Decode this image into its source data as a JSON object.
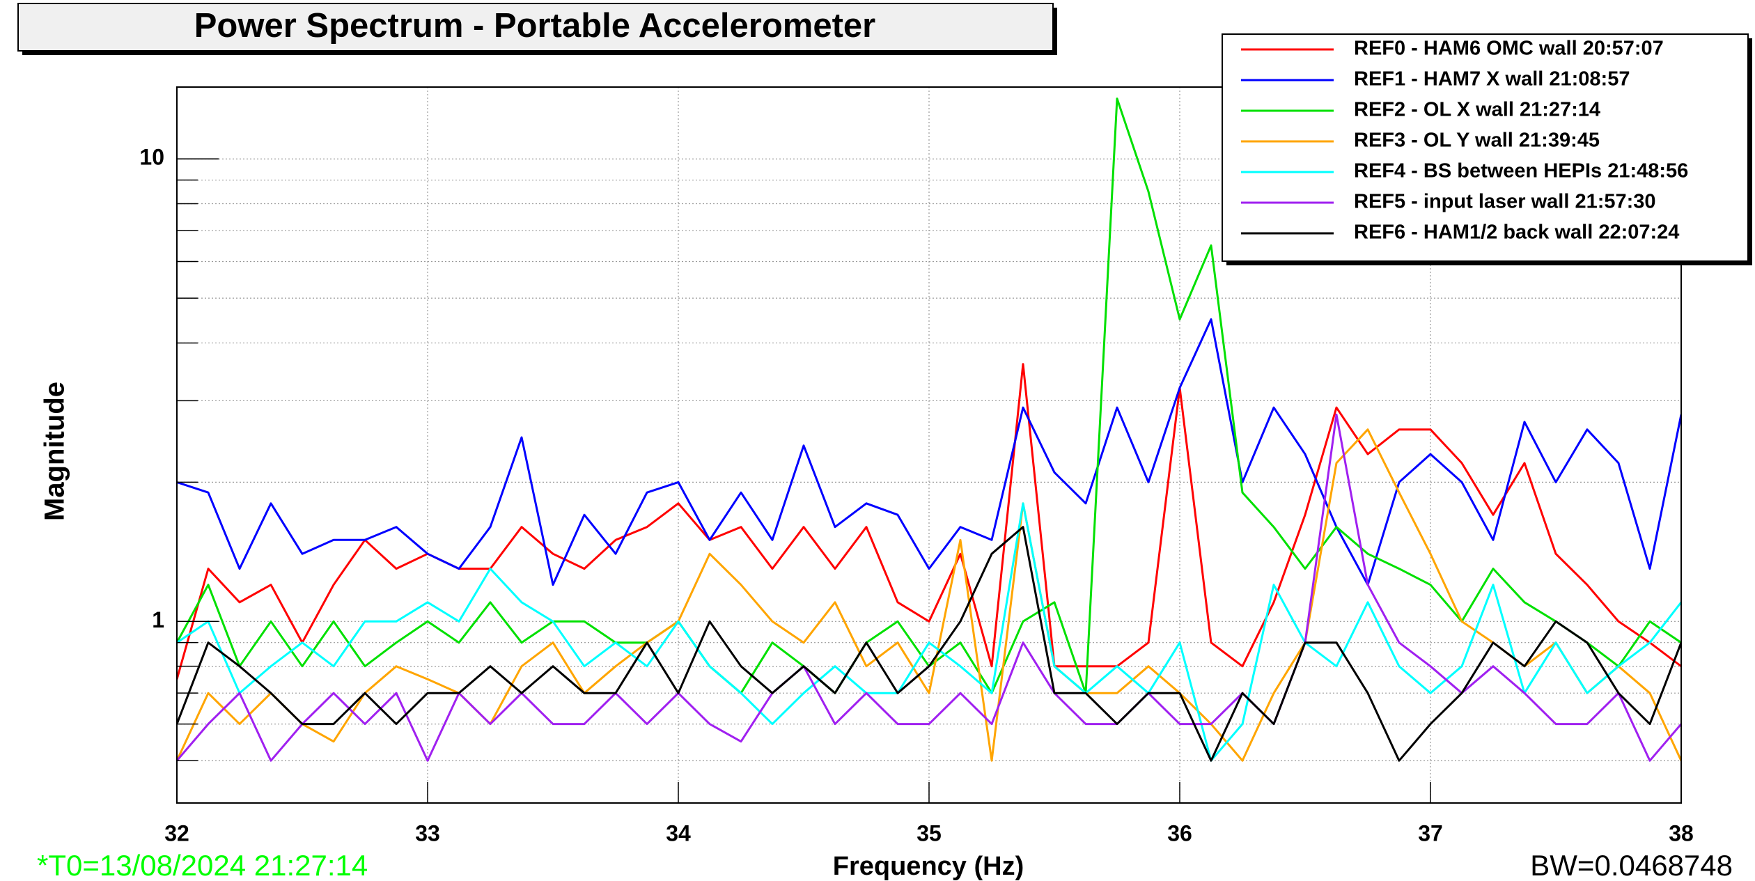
{
  "chart_data": {
    "type": "line",
    "title": "Power Spectrum - Portable Accelerometer",
    "x_label": "Frequency (Hz)",
    "y_label": "Magnitude",
    "t0_label": "*T0=13/08/2024 21:27:14",
    "t0_color": "#00ff00",
    "bw_label": "BW=0.0468748",
    "log_y": true,
    "grid": true,
    "legend": "top-right",
    "xlim": [
      32,
      38
    ],
    "xticks": [
      32,
      33,
      34,
      35,
      36,
      37,
      38
    ],
    "ylim": [
      0.405,
      14.3
    ],
    "yticks": [
      1,
      10
    ],
    "yminor": [
      0.5,
      0.6,
      0.7,
      0.8,
      0.9,
      2,
      3,
      4,
      5,
      6,
      7,
      8,
      9
    ],
    "x": [
      32,
      32.125,
      32.25,
      32.375,
      32.5,
      32.625,
      32.75,
      32.875,
      33,
      33.125,
      33.25,
      33.375,
      33.5,
      33.625,
      33.75,
      33.875,
      34,
      34.125,
      34.25,
      34.375,
      34.5,
      34.625,
      34.75,
      34.875,
      35,
      35.125,
      35.25,
      35.375,
      35.5,
      35.625,
      35.75,
      35.875,
      36,
      36.125,
      36.25,
      36.375,
      36.5,
      36.625,
      36.75,
      36.875,
      37,
      37.125,
      37.25,
      37.375,
      37.5,
      37.625,
      37.75,
      37.875,
      38
    ],
    "series": [
      {
        "name": "REF0 - HAM6 OMC wall 20:57:07",
        "color": "#ff0000",
        "values": [
          0.75,
          1.3,
          1.1,
          1.2,
          0.9,
          1.2,
          1.5,
          1.3,
          1.4,
          1.3,
          1.3,
          1.6,
          1.4,
          1.3,
          1.5,
          1.6,
          1.8,
          1.5,
          1.6,
          1.3,
          1.6,
          1.3,
          1.6,
          1.1,
          1.0,
          1.4,
          0.8,
          3.6,
          0.8,
          0.8,
          0.8,
          0.9,
          3.2,
          0.9,
          0.8,
          1.1,
          1.7,
          2.9,
          2.3,
          2.6,
          2.6,
          2.2,
          1.7,
          2.2,
          1.4,
          1.2,
          1.0,
          0.9,
          0.8
        ]
      },
      {
        "name": "REF1 - HAM7 X wall 21:08:57",
        "color": "#0000ff",
        "values": [
          2.0,
          1.9,
          1.3,
          1.8,
          1.4,
          1.5,
          1.5,
          1.6,
          1.4,
          1.3,
          1.6,
          2.5,
          1.2,
          1.7,
          1.4,
          1.9,
          2.0,
          1.5,
          1.9,
          1.5,
          2.4,
          1.6,
          1.8,
          1.7,
          1.3,
          1.6,
          1.5,
          2.9,
          2.1,
          1.8,
          2.9,
          2.0,
          3.2,
          4.5,
          2.0,
          2.9,
          2.3,
          1.6,
          1.2,
          2.0,
          2.3,
          2.0,
          1.5,
          2.7,
          2.0,
          2.6,
          2.2,
          1.3,
          2.8
        ]
      },
      {
        "name": "REF2 - OL X wall 21:27:14",
        "color": "#00e000",
        "values": [
          0.9,
          1.2,
          0.8,
          1.0,
          0.8,
          1.0,
          0.8,
          0.9,
          1.0,
          0.9,
          1.1,
          0.9,
          1.0,
          1.0,
          0.9,
          0.9,
          1.0,
          0.8,
          0.7,
          0.9,
          0.8,
          0.7,
          0.9,
          1.0,
          0.8,
          0.9,
          0.7,
          1.0,
          1.1,
          0.7,
          13.5,
          8.5,
          4.5,
          6.5,
          1.9,
          1.6,
          1.3,
          1.6,
          1.4,
          1.3,
          1.2,
          1.0,
          1.3,
          1.1,
          1.0,
          0.9,
          0.8,
          1.0,
          0.9
        ]
      },
      {
        "name": "REF3 - OL Y wall 21:39:45",
        "color": "#ffa500",
        "values": [
          0.5,
          0.7,
          0.6,
          0.7,
          0.6,
          0.55,
          0.7,
          0.8,
          0.75,
          0.7,
          0.6,
          0.8,
          0.9,
          0.7,
          0.8,
          0.9,
          1.0,
          1.4,
          1.2,
          1.0,
          0.9,
          1.1,
          0.8,
          0.9,
          0.7,
          1.5,
          0.5,
          1.8,
          0.8,
          0.7,
          0.7,
          0.8,
          0.7,
          0.6,
          0.5,
          0.7,
          0.9,
          2.2,
          2.6,
          1.9,
          1.4,
          1.0,
          0.9,
          0.8,
          0.9,
          0.7,
          0.8,
          0.7,
          0.5
        ]
      },
      {
        "name": "REF4 - BS between HEPIs 21:48:56",
        "color": "#00ffff",
        "values": [
          0.9,
          1.0,
          0.7,
          0.8,
          0.9,
          0.8,
          1.0,
          1.0,
          1.1,
          1.0,
          1.3,
          1.1,
          1.0,
          0.8,
          0.9,
          0.8,
          1.0,
          0.8,
          0.7,
          0.6,
          0.7,
          0.8,
          0.7,
          0.7,
          0.9,
          0.8,
          0.7,
          1.8,
          0.8,
          0.7,
          0.8,
          0.7,
          0.9,
          0.5,
          0.6,
          1.2,
          0.9,
          0.8,
          1.1,
          0.8,
          0.7,
          0.8,
          1.2,
          0.7,
          0.9,
          0.7,
          0.8,
          0.9,
          1.1
        ]
      },
      {
        "name": "REF5 - input laser wall 21:57:30",
        "color": "#a020f0",
        "values": [
          0.5,
          0.6,
          0.7,
          0.5,
          0.6,
          0.7,
          0.6,
          0.7,
          0.5,
          0.7,
          0.6,
          0.7,
          0.6,
          0.6,
          0.7,
          0.6,
          0.7,
          0.6,
          0.55,
          0.7,
          0.8,
          0.6,
          0.7,
          0.6,
          0.6,
          0.7,
          0.6,
          0.9,
          0.7,
          0.6,
          0.6,
          0.7,
          0.6,
          0.6,
          0.7,
          0.6,
          0.9,
          2.8,
          1.2,
          0.9,
          0.8,
          0.7,
          0.8,
          0.7,
          0.6,
          0.6,
          0.7,
          0.5,
          0.6
        ]
      },
      {
        "name": "REF6 - HAM1/2 back wall 22:07:24",
        "color": "#000000",
        "values": [
          0.6,
          0.9,
          0.8,
          0.7,
          0.6,
          0.6,
          0.7,
          0.6,
          0.7,
          0.7,
          0.8,
          0.7,
          0.8,
          0.7,
          0.7,
          0.9,
          0.7,
          1.0,
          0.8,
          0.7,
          0.8,
          0.7,
          0.9,
          0.7,
          0.8,
          1.0,
          1.4,
          1.6,
          0.7,
          0.7,
          0.6,
          0.7,
          0.7,
          0.5,
          0.7,
          0.6,
          0.9,
          0.9,
          0.7,
          0.5,
          0.6,
          0.7,
          0.9,
          0.8,
          1.0,
          0.9,
          0.7,
          0.6,
          0.9
        ]
      }
    ]
  }
}
